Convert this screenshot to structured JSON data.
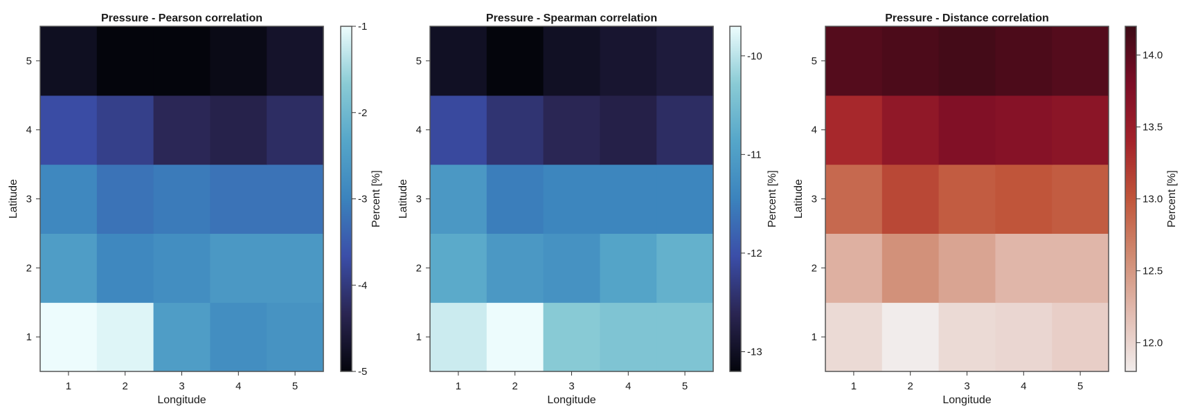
{
  "chart_data": [
    {
      "type": "heatmap",
      "title": "Pressure - Pearson correlation",
      "xlabel": "Longitude",
      "ylabel": "Latitude",
      "x": [
        1,
        2,
        3,
        4,
        5
      ],
      "y": [
        1,
        2,
        3,
        4,
        5
      ],
      "values": [
        [
          -1.0,
          -1.1,
          -2.5,
          -2.8,
          -2.7
        ],
        [
          -2.5,
          -2.9,
          -2.8,
          -2.6,
          -2.6
        ],
        [
          -2.9,
          -3.2,
          -3.1,
          -3.2,
          -3.2
        ],
        [
          -3.7,
          -3.9,
          -4.3,
          -4.4,
          -4.2
        ],
        [
          -4.8,
          -5.0,
          -5.0,
          -4.9,
          -4.7
        ]
      ],
      "colorbar": {
        "label": "Percent [%]",
        "ticks": [
          -5,
          -4,
          -3,
          -2,
          -1
        ],
        "tick_labels": [
          "-5",
          "-4",
          "-3",
          "-2",
          "-1"
        ],
        "range": [
          -5.0,
          -1.0
        ]
      },
      "colormap": "ice",
      "colors": [
        "#04050c",
        "#2a2552",
        "#3b4ea8",
        "#3b83bd",
        "#55a6c9",
        "#8acbd5",
        "#edfcfd"
      ]
    },
    {
      "type": "heatmap",
      "title": "Pressure - Spearman correlation",
      "xlabel": "Longitude",
      "ylabel": "Latitude",
      "x": [
        1,
        2,
        3,
        4,
        5
      ],
      "y": [
        1,
        2,
        3,
        4,
        5
      ],
      "values": [
        [
          -9.9,
          -9.7,
          -10.3,
          -10.4,
          -10.4
        ],
        [
          -10.8,
          -11.1,
          -11.2,
          -10.9,
          -10.7
        ],
        [
          -11.1,
          -11.5,
          -11.4,
          -11.4,
          -11.4
        ],
        [
          -12.1,
          -12.4,
          -12.6,
          -12.7,
          -12.5
        ],
        [
          -13.0,
          -13.2,
          -13.0,
          -12.9,
          -12.8
        ]
      ],
      "colorbar": {
        "label": "Percent [%]",
        "ticks": [
          -13,
          -12,
          -11,
          -10
        ],
        "tick_labels": [
          "-13",
          "-12",
          "-11",
          "-10"
        ],
        "range": [
          -13.2,
          -9.7
        ]
      },
      "colormap": "ice",
      "colors": [
        "#04050c",
        "#2a2552",
        "#3b4ea8",
        "#3b83bd",
        "#55a6c9",
        "#8acbd5",
        "#edfcfd"
      ]
    },
    {
      "type": "heatmap",
      "title": "Pressure - Distance correlation",
      "xlabel": "Longitude",
      "ylabel": "Latitude",
      "x": [
        1,
        2,
        3,
        4,
        5
      ],
      "y": [
        1,
        2,
        3,
        4,
        5
      ],
      "values": [
        [
          11.95,
          11.8,
          11.95,
          11.98,
          12.05
        ],
        [
          12.3,
          12.55,
          12.4,
          12.25,
          12.25
        ],
        [
          12.85,
          13.1,
          12.95,
          13.0,
          12.95
        ],
        [
          13.35,
          13.6,
          13.75,
          13.7,
          13.65
        ],
        [
          14.05,
          14.1,
          14.15,
          14.1,
          14.05
        ]
      ],
      "colorbar": {
        "label": "Percent [%]",
        "ticks": [
          12.0,
          12.5,
          13.0,
          13.5,
          14.0
        ],
        "tick_labels": [
          "12.0",
          "12.5",
          "13.0",
          "13.5",
          "14.0"
        ],
        "range": [
          11.8,
          14.2
        ]
      },
      "colormap": "amp",
      "colors": [
        "#f1eceb",
        "#e2bcb1",
        "#d08b72",
        "#c0553a",
        "#a3222a",
        "#7c0d26",
        "#3c0b16"
      ]
    }
  ]
}
